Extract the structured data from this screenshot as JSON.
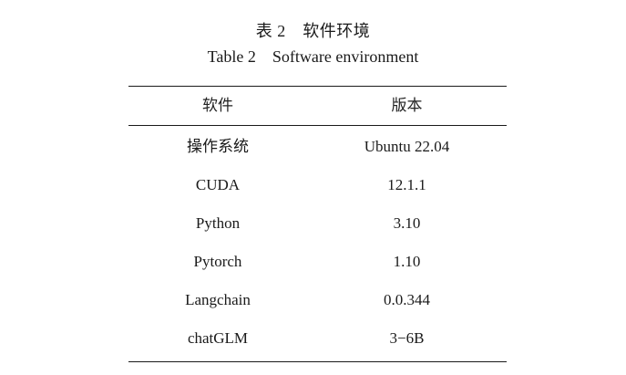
{
  "caption": {
    "zh": "表 2　软件环境",
    "en": "Table 2　Software environment"
  },
  "table": {
    "headers": [
      "软件",
      "版本"
    ],
    "rows": [
      [
        "操作系统",
        "Ubuntu 22.04"
      ],
      [
        "CUDA",
        "12.1.1"
      ],
      [
        "Python",
        "3.10"
      ],
      [
        "Pytorch",
        "1.10"
      ],
      [
        "Langchain",
        "0.0.344"
      ],
      [
        "chatGLM",
        "3−6B"
      ]
    ]
  }
}
